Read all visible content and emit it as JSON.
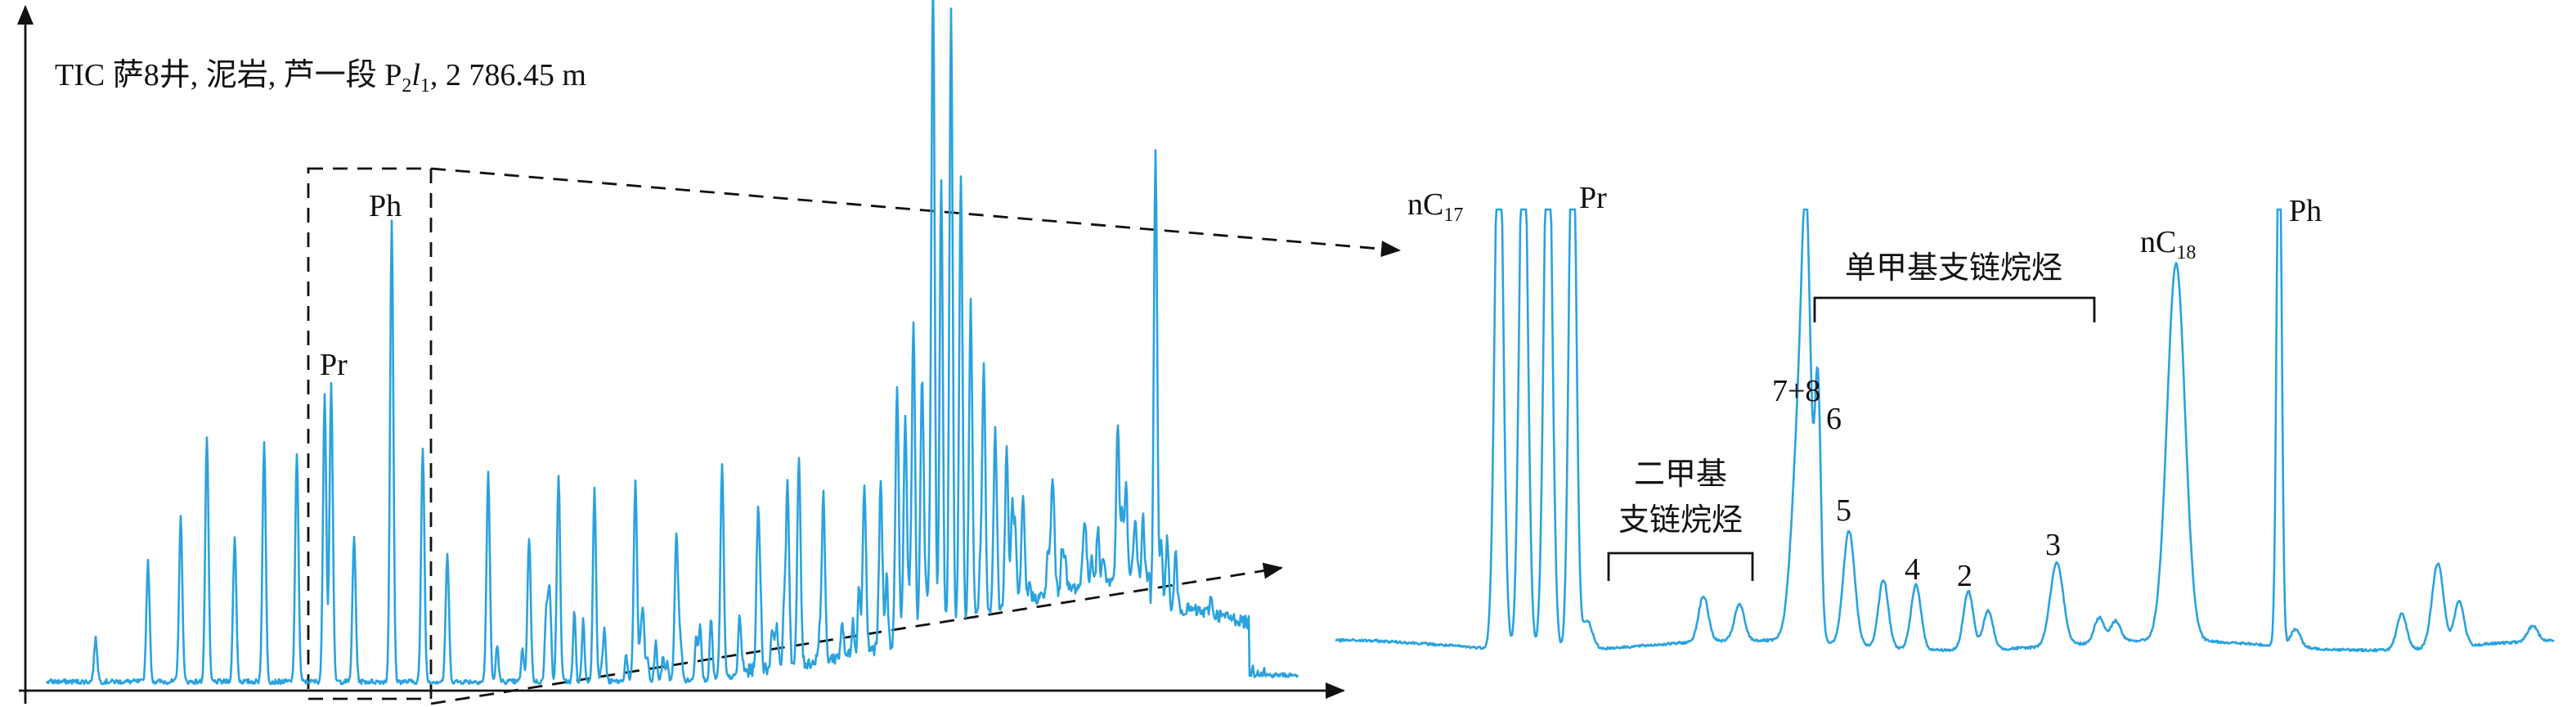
{
  "title": {
    "prefix": "TIC 萨8井, 泥岩, 芦一段 ",
    "formation": "P",
    "formation_sub": "2",
    "member": "l",
    "member_sub": "1",
    "depth": ", 2 786.45 m"
  },
  "overview_labels": {
    "pr": "Pr",
    "ph": "Ph"
  },
  "detail_labels": {
    "nc17": "nC",
    "nc17_sub": "17",
    "pr": "Pr",
    "nc18": "nC",
    "nc18_sub": "18",
    "ph": "Ph",
    "mono_methyl": "单甲基支链烷烃",
    "dimethyl_line1": "二甲基",
    "dimethyl_line2": "支链烷烃",
    "peaks": [
      "7+8",
      "6",
      "5",
      "4",
      "2",
      "3"
    ]
  }
}
